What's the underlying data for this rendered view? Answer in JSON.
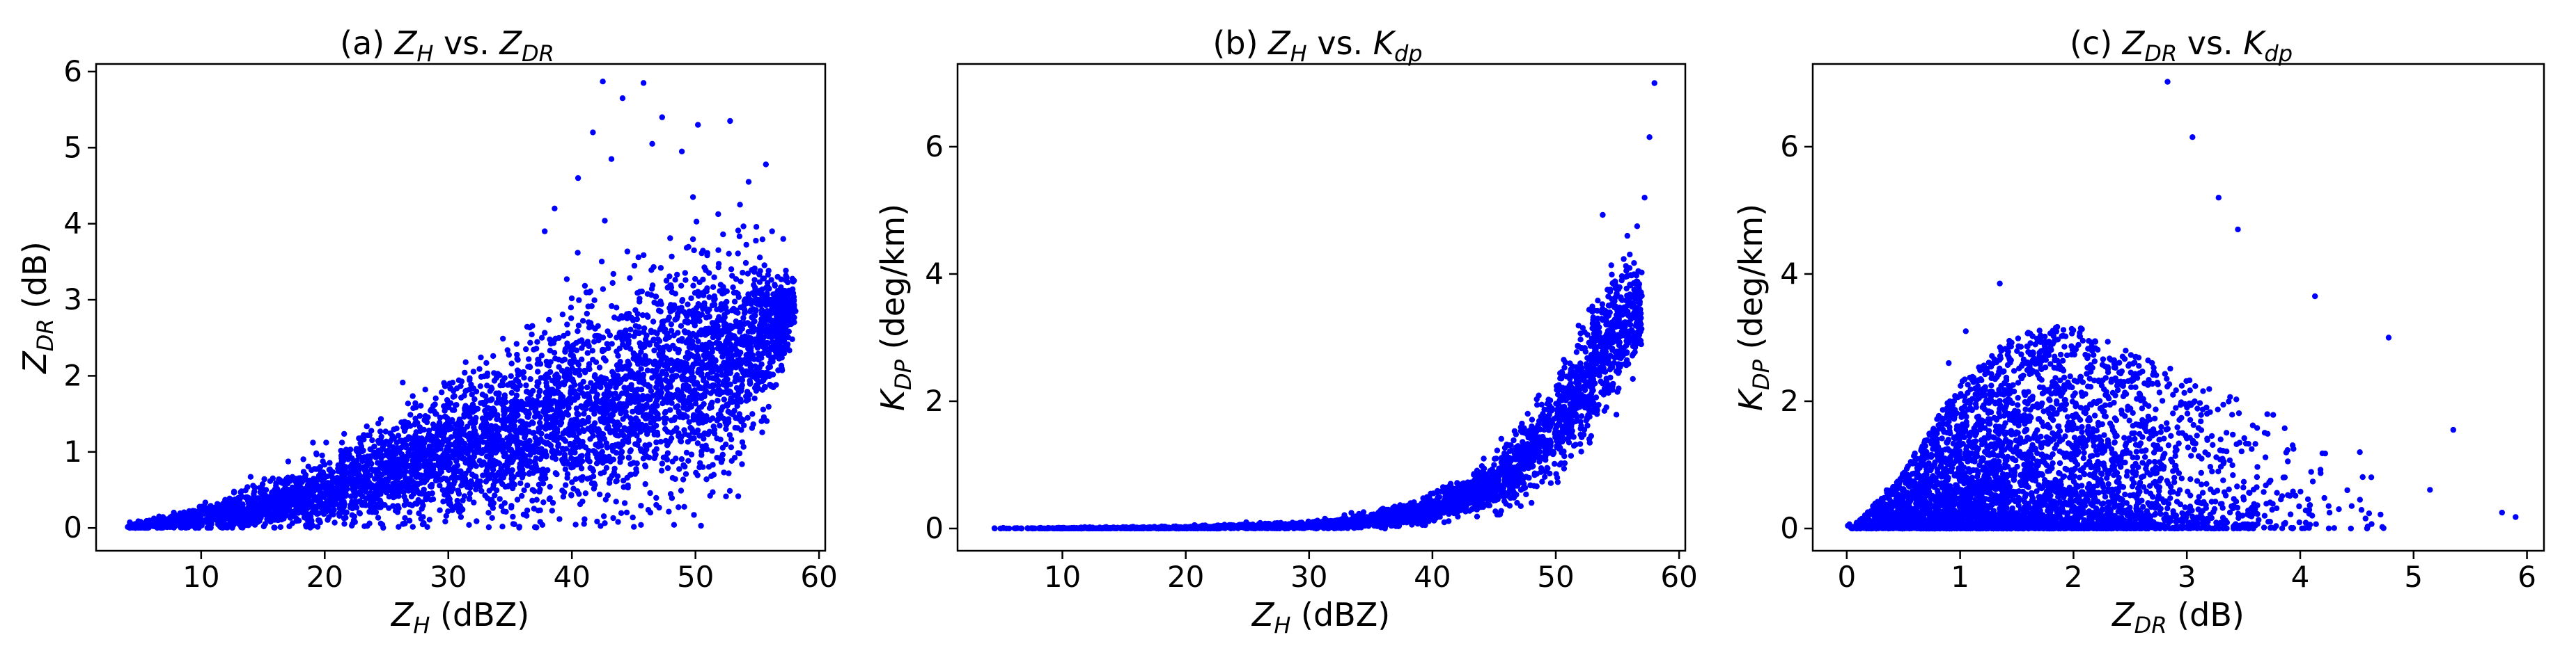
{
  "figure": {
    "colors": {
      "points": "#0000ff",
      "axes": "#000000",
      "background": "#ffffff"
    }
  },
  "chart_data": [
    {
      "type": "scatter",
      "title": "(a) Z_H vs. Z_DR",
      "title_parts": {
        "prefix": "(a) ",
        "v1": "Z",
        "v1_sub": "H",
        "mid": " vs. ",
        "v2": "Z",
        "v2_sub": "DR"
      },
      "xlabel": "Z_H (dBZ)",
      "xlabel_parts": {
        "sym": "Z",
        "sub": "H",
        "unit": " (dBZ)"
      },
      "ylabel": "Z_DR (dB)",
      "ylabel_parts": {
        "sym": "Z",
        "sub": "DR",
        "unit": " (dB)"
      },
      "xlim": [
        1.5,
        60.5
      ],
      "ylim": [
        -0.3,
        6.1
      ],
      "xticks": [
        10,
        20,
        30,
        40,
        50,
        60
      ],
      "yticks": [
        0,
        1,
        2,
        3,
        4,
        5,
        6
      ],
      "grid": false,
      "series": [
        {
          "relation": "dense cloud rising with Z_H; upper envelope ~0.1 at 5 dBZ, ~1.0 at 20, ~2.2 at 30, ~3.4 at 40, ~4.5 at 50 dBZ",
          "x": [
            4,
            8,
            12,
            16,
            20,
            24,
            28,
            32,
            36,
            40,
            44,
            48,
            52,
            56,
            58
          ],
          "y_center": [
            0.02,
            0.08,
            0.18,
            0.32,
            0.48,
            0.66,
            0.86,
            1.06,
            1.28,
            1.5,
            1.72,
            1.95,
            2.15,
            2.6,
            2.9
          ],
          "y_spread": [
            0.03,
            0.1,
            0.2,
            0.3,
            0.42,
            0.55,
            0.68,
            0.82,
            0.95,
            1.05,
            1.2,
            1.3,
            1.3,
            0.8,
            0.3
          ],
          "outliers": [
            [
              42.5,
              5.87
            ],
            [
              45.8,
              5.85
            ],
            [
              44.1,
              5.65
            ],
            [
              47.3,
              5.4
            ],
            [
              52.8,
              5.35
            ],
            [
              50.2,
              5.3
            ],
            [
              46.5,
              5.05
            ],
            [
              41.7,
              5.2
            ],
            [
              55.7,
              4.78
            ],
            [
              48.9,
              4.95
            ],
            [
              43.2,
              4.85
            ],
            [
              54.3,
              4.55
            ],
            [
              40.5,
              4.6
            ],
            [
              57.1,
              3.8
            ],
            [
              56.2,
              3.9
            ],
            [
              58.1,
              2.85
            ],
            [
              38.6,
              4.2
            ],
            [
              37.8,
              3.9
            ],
            [
              53.6,
              4.25
            ],
            [
              49.8,
              4.35
            ]
          ]
        }
      ]
    },
    {
      "type": "scatter",
      "title": "(b) Z_H vs. K_dp",
      "title_parts": {
        "prefix": "(b) ",
        "v1": "Z",
        "v1_sub": "H",
        "mid": " vs. ",
        "v2": "K",
        "v2_sub": "dp"
      },
      "xlabel": "Z_H (dBZ)",
      "xlabel_parts": {
        "sym": "Z",
        "sub": "H",
        "unit": " (dBZ)"
      },
      "ylabel": "K_DP (deg/km)",
      "ylabel_parts": {
        "sym": "K",
        "sub": "DP",
        "unit": " (deg/km)"
      },
      "xlim": [
        1.5,
        60.5
      ],
      "ylim": [
        -0.35,
        7.3
      ],
      "xticks": [
        10,
        20,
        30,
        40,
        50,
        60
      ],
      "yticks": [
        0,
        2,
        4,
        6
      ],
      "grid": false,
      "series": [
        {
          "relation": "near zero below 35 dBZ, rising exponentially; ~0.5 at 42, ~1.5 at 48, ~3 at 53, ~4 at 56 dBZ",
          "x": [
            4,
            10,
            20,
            30,
            35,
            40,
            44,
            47,
            50,
            52,
            54,
            56,
            57
          ],
          "y_center": [
            0.0,
            0.0,
            0.01,
            0.05,
            0.12,
            0.3,
            0.6,
            1.0,
            1.6,
            2.2,
            2.9,
            3.3,
            3.5
          ],
          "y_spread": [
            0.01,
            0.01,
            0.02,
            0.05,
            0.1,
            0.18,
            0.3,
            0.45,
            0.6,
            0.8,
            0.9,
            0.7,
            0.5
          ],
          "outliers": [
            [
              58.0,
              7.0
            ],
            [
              57.6,
              6.15
            ],
            [
              57.2,
              5.2
            ],
            [
              56.6,
              4.75
            ],
            [
              55.8,
              4.6
            ]
          ]
        }
      ]
    },
    {
      "type": "scatter",
      "title": "(c) Z_DR vs. K_dp",
      "title_parts": {
        "prefix": "(c) ",
        "v1": "Z",
        "v1_sub": "DR",
        "mid": " vs. ",
        "v2": "K",
        "v2_sub": "dp"
      },
      "xlabel": "Z_DR (dB)",
      "xlabel_parts": {
        "sym": "Z",
        "sub": "DR",
        "unit": " (dB)"
      },
      "ylabel": "K_DP (deg/km)",
      "ylabel_parts": {
        "sym": "K",
        "sub": "DP",
        "unit": " (deg/km)"
      },
      "xlim": [
        -0.3,
        6.15
      ],
      "ylim": [
        -0.35,
        7.3
      ],
      "xticks": [
        0,
        1,
        2,
        3,
        4,
        5,
        6
      ],
      "yticks": [
        0,
        2,
        4,
        6
      ],
      "grid": false,
      "series": [
        {
          "relation": "dense mound peaking near Z_DR 1.5-2 dB at ~1.5-2.5 deg/km, sparse tail to 6 dB",
          "x": [
            0.1,
            0.5,
            1.0,
            1.5,
            2.0,
            2.5,
            3.0,
            3.5,
            4.0,
            4.5,
            5.0,
            5.5,
            5.9
          ],
          "y_upper": [
            0.1,
            0.9,
            2.3,
            3.1,
            3.2,
            2.8,
            2.4,
            2.0,
            1.6,
            1.3,
            1.0,
            0.8,
            0.3
          ],
          "outliers": [
            [
              2.83,
              7.02
            ],
            [
              3.05,
              6.15
            ],
            [
              3.28,
              5.2
            ],
            [
              3.45,
              4.7
            ],
            [
              4.13,
              3.65
            ],
            [
              4.78,
              3.0
            ],
            [
              5.35,
              1.55
            ],
            [
              5.78,
              0.25
            ],
            [
              5.9,
              0.18
            ],
            [
              1.35,
              3.85
            ],
            [
              1.05,
              3.1
            ],
            [
              0.9,
              2.6
            ]
          ]
        }
      ]
    }
  ]
}
